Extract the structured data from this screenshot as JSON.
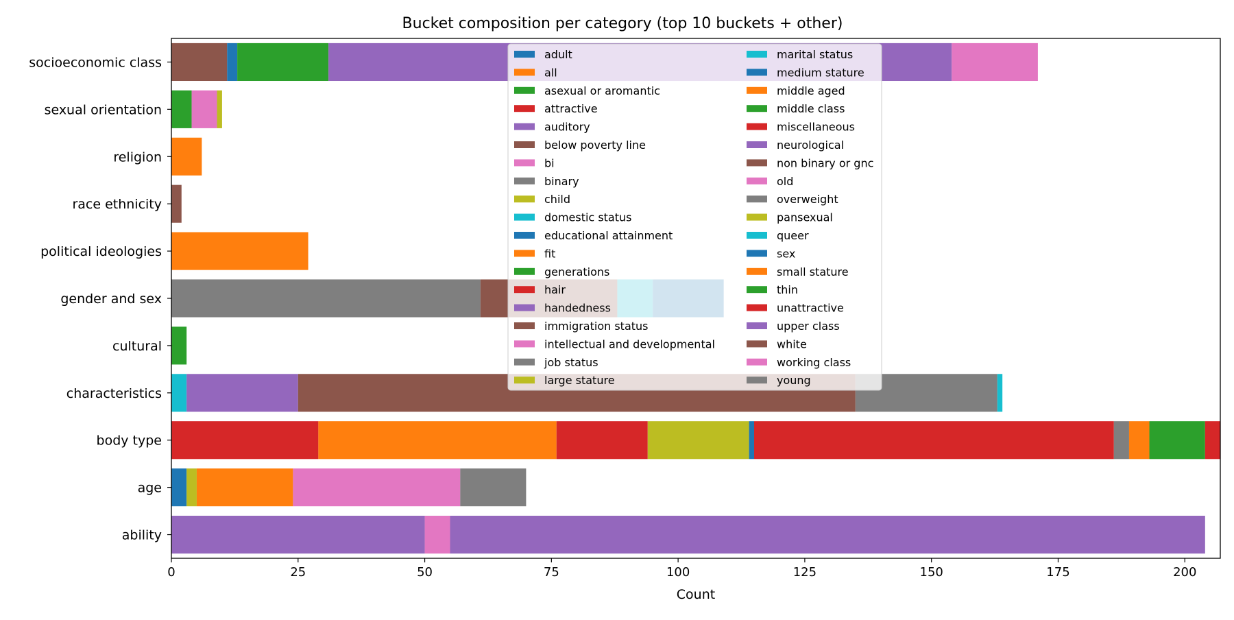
{
  "chart_data": {
    "type": "bar",
    "orientation": "horizontal",
    "stacked": true,
    "title": "Bucket composition per category (top 10 buckets + other)",
    "xlabel": "Count",
    "ylabel": "",
    "xlim": [
      0,
      207
    ],
    "x_ticks": [
      0,
      25,
      50,
      75,
      100,
      125,
      150,
      175,
      200
    ],
    "grid": false,
    "legend_position": "top-center",
    "legend_columns": 2,
    "categories": [
      "ability",
      "age",
      "body type",
      "characteristics",
      "cultural",
      "gender and sex",
      "political ideologies",
      "race ethnicity",
      "religion",
      "sexual orientation",
      "socioeconomic class"
    ],
    "series": [
      {
        "name": "adult",
        "color": "#1f77b4",
        "values": [
          0,
          3,
          0,
          0,
          0,
          0,
          0,
          0,
          0,
          0,
          0
        ]
      },
      {
        "name": "all",
        "color": "#ff7f0e",
        "values": [
          0,
          0,
          0,
          0,
          0,
          0,
          27,
          0,
          6,
          0,
          0
        ]
      },
      {
        "name": "asexual or aromantic",
        "color": "#2ca02c",
        "values": [
          0,
          0,
          0,
          0,
          0,
          0,
          0,
          0,
          0,
          4,
          0
        ]
      },
      {
        "name": "attractive",
        "color": "#d62728",
        "values": [
          0,
          0,
          29,
          0,
          0,
          0,
          0,
          0,
          0,
          0,
          0
        ]
      },
      {
        "name": "auditory",
        "color": "#9467bd",
        "values": [
          50,
          0,
          0,
          0,
          0,
          0,
          0,
          0,
          0,
          0,
          0
        ]
      },
      {
        "name": "below poverty line",
        "color": "#8c564b",
        "values": [
          0,
          0,
          0,
          0,
          0,
          0,
          0,
          0,
          0,
          0,
          11
        ]
      },
      {
        "name": "bi",
        "color": "#e377c2",
        "values": [
          0,
          0,
          0,
          0,
          0,
          0,
          0,
          0,
          0,
          5,
          0
        ]
      },
      {
        "name": "binary",
        "color": "#7f7f7f",
        "values": [
          0,
          0,
          0,
          0,
          0,
          61,
          0,
          0,
          0,
          0,
          0
        ]
      },
      {
        "name": "child",
        "color": "#bcbd22",
        "values": [
          0,
          2,
          0,
          0,
          0,
          0,
          0,
          0,
          0,
          0,
          0
        ]
      },
      {
        "name": "domestic status",
        "color": "#17becf",
        "values": [
          0,
          0,
          0,
          3,
          0,
          0,
          0,
          0,
          0,
          0,
          0
        ]
      },
      {
        "name": "educational attainment",
        "color": "#1f77b4",
        "values": [
          0,
          0,
          0,
          0,
          0,
          0,
          0,
          0,
          0,
          0,
          2
        ]
      },
      {
        "name": "fit",
        "color": "#ff7f0e",
        "values": [
          0,
          0,
          47,
          0,
          0,
          0,
          0,
          0,
          0,
          0,
          0
        ]
      },
      {
        "name": "generations",
        "color": "#2ca02c",
        "values": [
          0,
          0,
          0,
          0,
          3,
          0,
          0,
          0,
          0,
          0,
          0
        ]
      },
      {
        "name": "hair",
        "color": "#d62728",
        "values": [
          0,
          0,
          18,
          0,
          0,
          0,
          0,
          0,
          0,
          0,
          0
        ]
      },
      {
        "name": "handedness",
        "color": "#9467bd",
        "values": [
          0,
          0,
          0,
          22,
          0,
          0,
          0,
          0,
          0,
          0,
          0
        ]
      },
      {
        "name": "immigration status",
        "color": "#8c564b",
        "values": [
          0,
          0,
          0,
          110,
          0,
          0,
          0,
          0,
          0,
          0,
          0
        ]
      },
      {
        "name": "intellectual and developmental",
        "color": "#e377c2",
        "values": [
          5,
          0,
          0,
          0,
          0,
          0,
          0,
          0,
          0,
          0,
          0
        ]
      },
      {
        "name": "job status",
        "color": "#7f7f7f",
        "values": [
          0,
          0,
          0,
          28,
          0,
          0,
          0,
          0,
          0,
          0,
          0
        ]
      },
      {
        "name": "large stature",
        "color": "#bcbd22",
        "values": [
          0,
          0,
          20,
          0,
          0,
          0,
          0,
          0,
          0,
          0,
          0
        ]
      },
      {
        "name": "marital status",
        "color": "#17becf",
        "values": [
          0,
          0,
          0,
          1,
          0,
          0,
          0,
          0,
          0,
          0,
          0
        ]
      },
      {
        "name": "medium stature",
        "color": "#1f77b4",
        "values": [
          0,
          0,
          1,
          0,
          0,
          0,
          0,
          0,
          0,
          0,
          0
        ]
      },
      {
        "name": "middle aged",
        "color": "#ff7f0e",
        "values": [
          0,
          19,
          0,
          0,
          0,
          0,
          0,
          0,
          0,
          0,
          0
        ]
      },
      {
        "name": "middle class",
        "color": "#2ca02c",
        "values": [
          0,
          0,
          0,
          0,
          0,
          0,
          0,
          0,
          0,
          0,
          18
        ]
      },
      {
        "name": "miscellaneous",
        "color": "#d62728",
        "values": [
          0,
          0,
          71,
          0,
          0,
          0,
          0,
          0,
          0,
          0,
          0
        ]
      },
      {
        "name": "neurological",
        "color": "#9467bd",
        "values": [
          149,
          0,
          0,
          0,
          0,
          0,
          0,
          0,
          0,
          0,
          0
        ]
      },
      {
        "name": "non binary or gnc",
        "color": "#8c564b",
        "values": [
          0,
          0,
          0,
          0,
          0,
          27,
          0,
          0,
          0,
          0,
          0
        ]
      },
      {
        "name": "old",
        "color": "#e377c2",
        "values": [
          0,
          33,
          0,
          0,
          0,
          0,
          0,
          0,
          0,
          0,
          0
        ]
      },
      {
        "name": "overweight",
        "color": "#7f7f7f",
        "values": [
          0,
          0,
          3,
          0,
          0,
          0,
          0,
          0,
          0,
          0,
          0
        ]
      },
      {
        "name": "pansexual",
        "color": "#bcbd22",
        "values": [
          0,
          0,
          0,
          0,
          0,
          0,
          0,
          0,
          0,
          1,
          0
        ]
      },
      {
        "name": "queer",
        "color": "#17becf",
        "values": [
          0,
          0,
          0,
          0,
          0,
          7,
          0,
          0,
          0,
          0,
          0
        ]
      },
      {
        "name": "sex",
        "color": "#1f77b4",
        "values": [
          0,
          0,
          0,
          0,
          0,
          14,
          0,
          0,
          0,
          0,
          0
        ]
      },
      {
        "name": "small stature",
        "color": "#ff7f0e",
        "values": [
          0,
          0,
          4,
          0,
          0,
          0,
          0,
          0,
          0,
          0,
          0
        ]
      },
      {
        "name": "thin",
        "color": "#2ca02c",
        "values": [
          0,
          0,
          11,
          0,
          0,
          0,
          0,
          0,
          0,
          0,
          0
        ]
      },
      {
        "name": "unattractive",
        "color": "#d62728",
        "values": [
          0,
          0,
          3,
          0,
          0,
          0,
          0,
          0,
          0,
          0,
          0
        ]
      },
      {
        "name": "upper class",
        "color": "#9467bd",
        "values": [
          0,
          0,
          0,
          0,
          0,
          0,
          0,
          0,
          0,
          0,
          123
        ]
      },
      {
        "name": "white",
        "color": "#8c564b",
        "values": [
          0,
          0,
          0,
          0,
          0,
          0,
          0,
          2,
          0,
          0,
          0
        ]
      },
      {
        "name": "working class",
        "color": "#e377c2",
        "values": [
          0,
          0,
          0,
          0,
          0,
          0,
          0,
          0,
          0,
          0,
          17
        ]
      },
      {
        "name": "young",
        "color": "#7f7f7f",
        "values": [
          0,
          13,
          0,
          0,
          0,
          0,
          0,
          0,
          0,
          0,
          0
        ]
      }
    ]
  }
}
